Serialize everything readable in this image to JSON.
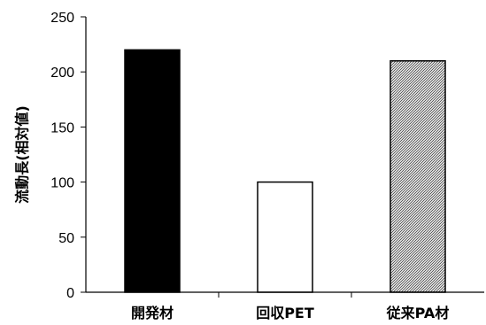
{
  "chart_data": {
    "type": "bar",
    "title": "",
    "xlabel": "",
    "ylabel": "流動長(相対値)",
    "ylim": [
      0,
      250
    ],
    "yticks": [
      0,
      50,
      100,
      150,
      200,
      250
    ],
    "categories": [
      "開発材",
      "回収PET",
      "従来PA材"
    ],
    "values": [
      220,
      100,
      210
    ],
    "bar_styles": [
      {
        "fill": "#000000",
        "pattern": "solid"
      },
      {
        "fill": "#ffffff",
        "pattern": "none"
      },
      {
        "fill": "#ffffff",
        "pattern": "hatch"
      }
    ],
    "grid": false,
    "legend": "none"
  }
}
